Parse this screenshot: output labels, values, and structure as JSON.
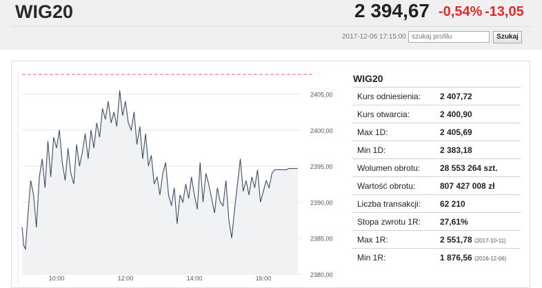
{
  "header": {
    "title": "WIG20",
    "price": "2 394,67",
    "change_pct": "-0,54%",
    "change_abs": "-13,05",
    "timestamp": "2017-12-06 17:15:00",
    "search_placeholder": "szukaj profilu",
    "search_button": "Szukaj"
  },
  "stats": {
    "title": "WIG20",
    "rows": [
      {
        "label": "Kurs odniesienia:",
        "value": "2 407,72",
        "date": ""
      },
      {
        "label": "Kurs otwarcia:",
        "value": "2 400,90",
        "date": ""
      },
      {
        "label": "Max 1D:",
        "value": "2 405,69",
        "date": ""
      },
      {
        "label": "Min 1D:",
        "value": "2 383,18",
        "date": ""
      },
      {
        "label": "Wolumen obrotu:",
        "value": "28 553 264 szt.",
        "date": ""
      },
      {
        "label": "Wartość obrotu:",
        "value": "807 427 008 zł",
        "date": ""
      },
      {
        "label": "Liczba transakcji:",
        "value": "62 210",
        "date": ""
      },
      {
        "label": "Stopa zwrotu 1R:",
        "value": "27,61%",
        "date": ""
      },
      {
        "label": "Max 1R:",
        "value": "2 551,78",
        "date": "(2017-10-11)"
      },
      {
        "label": "Min 1R:",
        "value": "1 876,56",
        "date": "(2016-12-06)"
      }
    ]
  },
  "colors": {
    "negative": "#e02b2b",
    "line": "#3a4c63",
    "area": "#f1f2f4",
    "reference": "#f0836b"
  },
  "chart_data": {
    "type": "area",
    "title": "",
    "xlabel": "",
    "ylabel": "",
    "ylim": [
      2380,
      2407.72
    ],
    "xlim": [
      "09:00",
      "17:05"
    ],
    "x_ticks": [
      "10:00",
      "12:00",
      "14:00",
      "16:00"
    ],
    "y_ticks": [
      "2405,00",
      "2400,00",
      "2395,00",
      "2390,00",
      "2385,00",
      "2380,00"
    ],
    "reference_line": 2407.72,
    "series": [
      {
        "name": "",
        "x": [
          "09:00",
          "09:03",
          "09:06",
          "09:10",
          "09:15",
          "09:20",
          "09:25",
          "09:30",
          "09:35",
          "09:40",
          "09:45",
          "09:50",
          "09:55",
          "10:00",
          "10:05",
          "10:10",
          "10:15",
          "10:20",
          "10:25",
          "10:30",
          "10:35",
          "10:40",
          "10:45",
          "10:50",
          "10:55",
          "11:00",
          "11:05",
          "11:10",
          "11:15",
          "11:20",
          "11:25",
          "11:30",
          "11:35",
          "11:40",
          "11:45",
          "11:50",
          "11:55",
          "12:00",
          "12:05",
          "12:10",
          "12:15",
          "12:20",
          "12:25",
          "12:30",
          "12:35",
          "12:40",
          "12:45",
          "12:50",
          "12:55",
          "13:00",
          "13:05",
          "13:10",
          "13:15",
          "13:20",
          "13:25",
          "13:30",
          "13:35",
          "13:40",
          "13:45",
          "13:50",
          "13:55",
          "14:00",
          "14:05",
          "14:10",
          "14:15",
          "14:20",
          "14:25",
          "14:30",
          "14:35",
          "14:40",
          "14:45",
          "14:50",
          "14:55",
          "15:00",
          "15:05",
          "15:10",
          "15:15",
          "15:20",
          "15:25",
          "15:30",
          "15:35",
          "15:40",
          "15:45",
          "15:50",
          "15:55",
          "16:00",
          "16:05",
          "16:10",
          "16:15",
          "16:20",
          "16:25",
          "16:30",
          "16:35",
          "16:40",
          "16:45",
          "16:50",
          "17:00"
        ],
        "values": [
          2386.5,
          2384.0,
          2383.5,
          2388.0,
          2393.0,
          2391.0,
          2386.5,
          2393.5,
          2396.0,
          2392.0,
          2398.5,
          2393.5,
          2399.0,
          2397.5,
          2400.0,
          2395.5,
          2393.0,
          2397.5,
          2394.0,
          2392.5,
          2398.0,
          2395.0,
          2397.0,
          2399.5,
          2396.0,
          2400.0,
          2397.5,
          2401.0,
          2399.0,
          2403.0,
          2401.5,
          2404.0,
          2401.0,
          2402.5,
          2400.5,
          2405.5,
          2402.0,
          2404.0,
          2401.0,
          2400.0,
          2402.5,
          2398.0,
          2400.5,
          2396.0,
          2399.5,
          2395.0,
          2396.5,
          2392.5,
          2393.5,
          2391.0,
          2394.0,
          2395.5,
          2391.0,
          2389.5,
          2392.0,
          2387.0,
          2391.0,
          2390.0,
          2392.5,
          2390.5,
          2393.5,
          2391.0,
          2389.0,
          2395.5,
          2390.0,
          2394.0,
          2392.5,
          2390.5,
          2388.5,
          2392.0,
          2390.0,
          2389.5,
          2393.0,
          2387.5,
          2385.0,
          2389.0,
          2392.5,
          2396.0,
          2391.5,
          2393.0,
          2391.0,
          2393.5,
          2392.0,
          2394.5,
          2390.0,
          2391.5,
          2393.0,
          2392.0,
          2394.0,
          2394.5,
          2394.5,
          2394.5,
          2394.5,
          2394.5,
          2394.67,
          2394.67,
          2394.67
        ]
      }
    ]
  }
}
